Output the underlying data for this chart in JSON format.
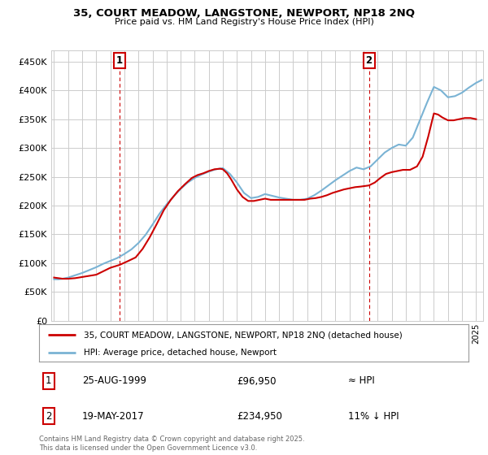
{
  "title": "35, COURT MEADOW, LANGSTONE, NEWPORT, NP18 2NQ",
  "subtitle": "Price paid vs. HM Land Registry's House Price Index (HPI)",
  "ytick_values": [
    0,
    50000,
    100000,
    150000,
    200000,
    250000,
    300000,
    350000,
    400000,
    450000
  ],
  "ylim": [
    0,
    470000
  ],
  "xlim_start": 1994.8,
  "xlim_end": 2025.5,
  "marker1_x": 1999.65,
  "marker1_y": 96950,
  "marker2_x": 2017.38,
  "marker2_y": 234950,
  "red_line_color": "#cc0000",
  "blue_line_color": "#7ab3d4",
  "grid_color": "#cccccc",
  "background_color": "#ffffff",
  "legend1_label": "35, COURT MEADOW, LANGSTONE, NEWPORT, NP18 2NQ (detached house)",
  "legend2_label": "HPI: Average price, detached house, Newport",
  "footer": "Contains HM Land Registry data © Crown copyright and database right 2025.\nThis data is licensed under the Open Government Licence v3.0.",
  "table_rows": [
    {
      "num": "1",
      "date": "25-AUG-1999",
      "price": "£96,950",
      "note": "≈ HPI"
    },
    {
      "num": "2",
      "date": "19-MAY-2017",
      "price": "£234,950",
      "note": "11% ↓ HPI"
    }
  ],
  "red_line_x": [
    1995.0,
    1995.3,
    1995.6,
    1996.0,
    1996.5,
    1997.0,
    1997.5,
    1998.0,
    1998.5,
    1999.0,
    1999.65,
    2000.2,
    2000.8,
    2001.3,
    2001.8,
    2002.3,
    2002.8,
    2003.3,
    2003.8,
    2004.3,
    2004.8,
    2005.2,
    2005.6,
    2006.0,
    2006.4,
    2006.8,
    2007.0,
    2007.3,
    2007.6,
    2008.0,
    2008.4,
    2008.8,
    2009.2,
    2009.6,
    2010.0,
    2010.4,
    2010.8,
    2011.2,
    2011.6,
    2012.0,
    2012.4,
    2012.8,
    2013.2,
    2013.6,
    2014.0,
    2014.4,
    2014.8,
    2015.2,
    2015.6,
    2016.0,
    2016.4,
    2016.8,
    2017.1,
    2017.38,
    2017.8,
    2018.2,
    2018.6,
    2019.0,
    2019.4,
    2019.8,
    2020.3,
    2020.8,
    2021.2,
    2021.6,
    2022.0,
    2022.3,
    2022.6,
    2023.0,
    2023.4,
    2023.8,
    2024.2,
    2024.6,
    2025.0
  ],
  "red_line_y": [
    75000,
    74000,
    73000,
    73000,
    74000,
    76000,
    78000,
    80000,
    86000,
    92000,
    96950,
    103000,
    110000,
    125000,
    145000,
    168000,
    192000,
    210000,
    225000,
    237000,
    248000,
    253000,
    256000,
    260000,
    263000,
    264000,
    263000,
    256000,
    245000,
    228000,
    215000,
    208000,
    208000,
    210000,
    212000,
    210000,
    210000,
    210000,
    210000,
    210000,
    210000,
    210000,
    212000,
    213000,
    215000,
    218000,
    222000,
    225000,
    228000,
    230000,
    232000,
    233000,
    234000,
    234950,
    240000,
    248000,
    255000,
    258000,
    260000,
    262000,
    262000,
    268000,
    285000,
    320000,
    360000,
    358000,
    353000,
    348000,
    348000,
    350000,
    352000,
    352000,
    350000
  ],
  "blue_line_x": [
    1995.0,
    1995.3,
    1995.6,
    1996.0,
    1996.5,
    1997.0,
    1997.5,
    1998.0,
    1998.5,
    1999.0,
    1999.5,
    2000.0,
    2000.5,
    2001.0,
    2001.5,
    2002.0,
    2002.5,
    2003.0,
    2003.5,
    2004.0,
    2004.5,
    2005.0,
    2005.5,
    2006.0,
    2006.5,
    2007.0,
    2007.5,
    2008.0,
    2008.5,
    2009.0,
    2009.5,
    2010.0,
    2010.5,
    2011.0,
    2011.5,
    2012.0,
    2012.5,
    2013.0,
    2013.5,
    2014.0,
    2014.5,
    2015.0,
    2015.5,
    2016.0,
    2016.5,
    2017.0,
    2017.5,
    2018.0,
    2018.5,
    2019.0,
    2019.5,
    2020.0,
    2020.5,
    2021.0,
    2021.5,
    2022.0,
    2022.5,
    2023.0,
    2023.5,
    2024.0,
    2024.5,
    2025.0,
    2025.4
  ],
  "blue_line_y": [
    72000,
    72000,
    73000,
    75000,
    79000,
    83000,
    88000,
    93000,
    99000,
    104000,
    109000,
    116000,
    124000,
    135000,
    149000,
    167000,
    186000,
    202000,
    216000,
    229000,
    240000,
    248000,
    254000,
    259000,
    263000,
    265000,
    255000,
    240000,
    222000,
    213000,
    215000,
    220000,
    217000,
    214000,
    212000,
    210000,
    210000,
    212000,
    218000,
    226000,
    235000,
    244000,
    252000,
    260000,
    266000,
    263000,
    268000,
    280000,
    292000,
    300000,
    306000,
    304000,
    318000,
    348000,
    378000,
    406000,
    400000,
    388000,
    390000,
    396000,
    405000,
    413000,
    418000
  ]
}
